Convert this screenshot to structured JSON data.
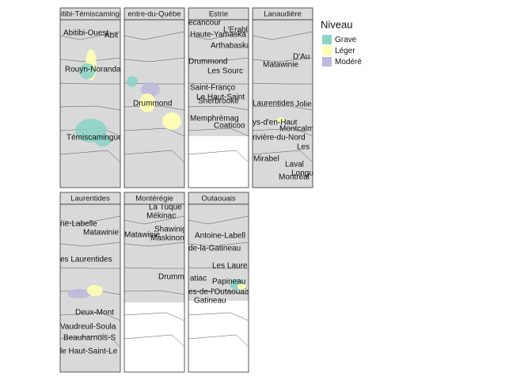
{
  "legend": {
    "title": "Niveau",
    "items": [
      {
        "label": "Grave",
        "color": "#8dd3c7"
      },
      {
        "label": "Léger",
        "color": "#ffffb3"
      },
      {
        "label": "Modéré",
        "color": "#bebada"
      }
    ]
  },
  "facets": [
    {
      "title": "bitibi-Témiscamingu",
      "labels": [
        "Abitibi-Ouest",
        "Abit",
        "Rouyn-Noranda",
        "Témiscamingue"
      ]
    },
    {
      "title": "entre-du-Québe",
      "labels": [
        "Drummond"
      ]
    },
    {
      "title": "Estrie",
      "labels": [
        "ecancour",
        "L'Erabl",
        "Haute-Yamaska",
        "Arthabaska",
        "Drummond",
        "Les Sourc",
        "Saint-Franço",
        "Le Haut-Saint",
        "Sherbrooke",
        "Memphrémag",
        "Coaticoo"
      ]
    },
    {
      "title": "Lanaudière",
      "labels": [
        "D'Au",
        "Matawinie",
        "Laurentides",
        "Jolie",
        "ys-d'en-Haut",
        "Montcalm",
        "rivière-du-Nord",
        "Les Mou",
        "Mirabel",
        "Laval",
        "Longueuil",
        "Montréal"
      ]
    },
    {
      "title": "Laurentides",
      "labels": [
        "ne-Labelle",
        "Matawinie",
        "es Laurentides",
        "Deux-Mont",
        "Vaudreuil-Soula",
        "Beauharnois-S",
        "le Haut-Saint-Le"
      ]
    },
    {
      "title": "Montérégie",
      "labels": [
        "La Tuque",
        "Mékinac",
        "Shawinigan",
        "Matawinie",
        "Maskinongé",
        "Drummond"
      ]
    },
    {
      "title": "Outaouais",
      "labels": [
        "Antoine-Labell",
        "de-la-Gatineau",
        "Les Laure",
        "atiac",
        "Papineau",
        "es-de-l'Outaouais",
        "Gatineau"
      ]
    }
  ]
}
